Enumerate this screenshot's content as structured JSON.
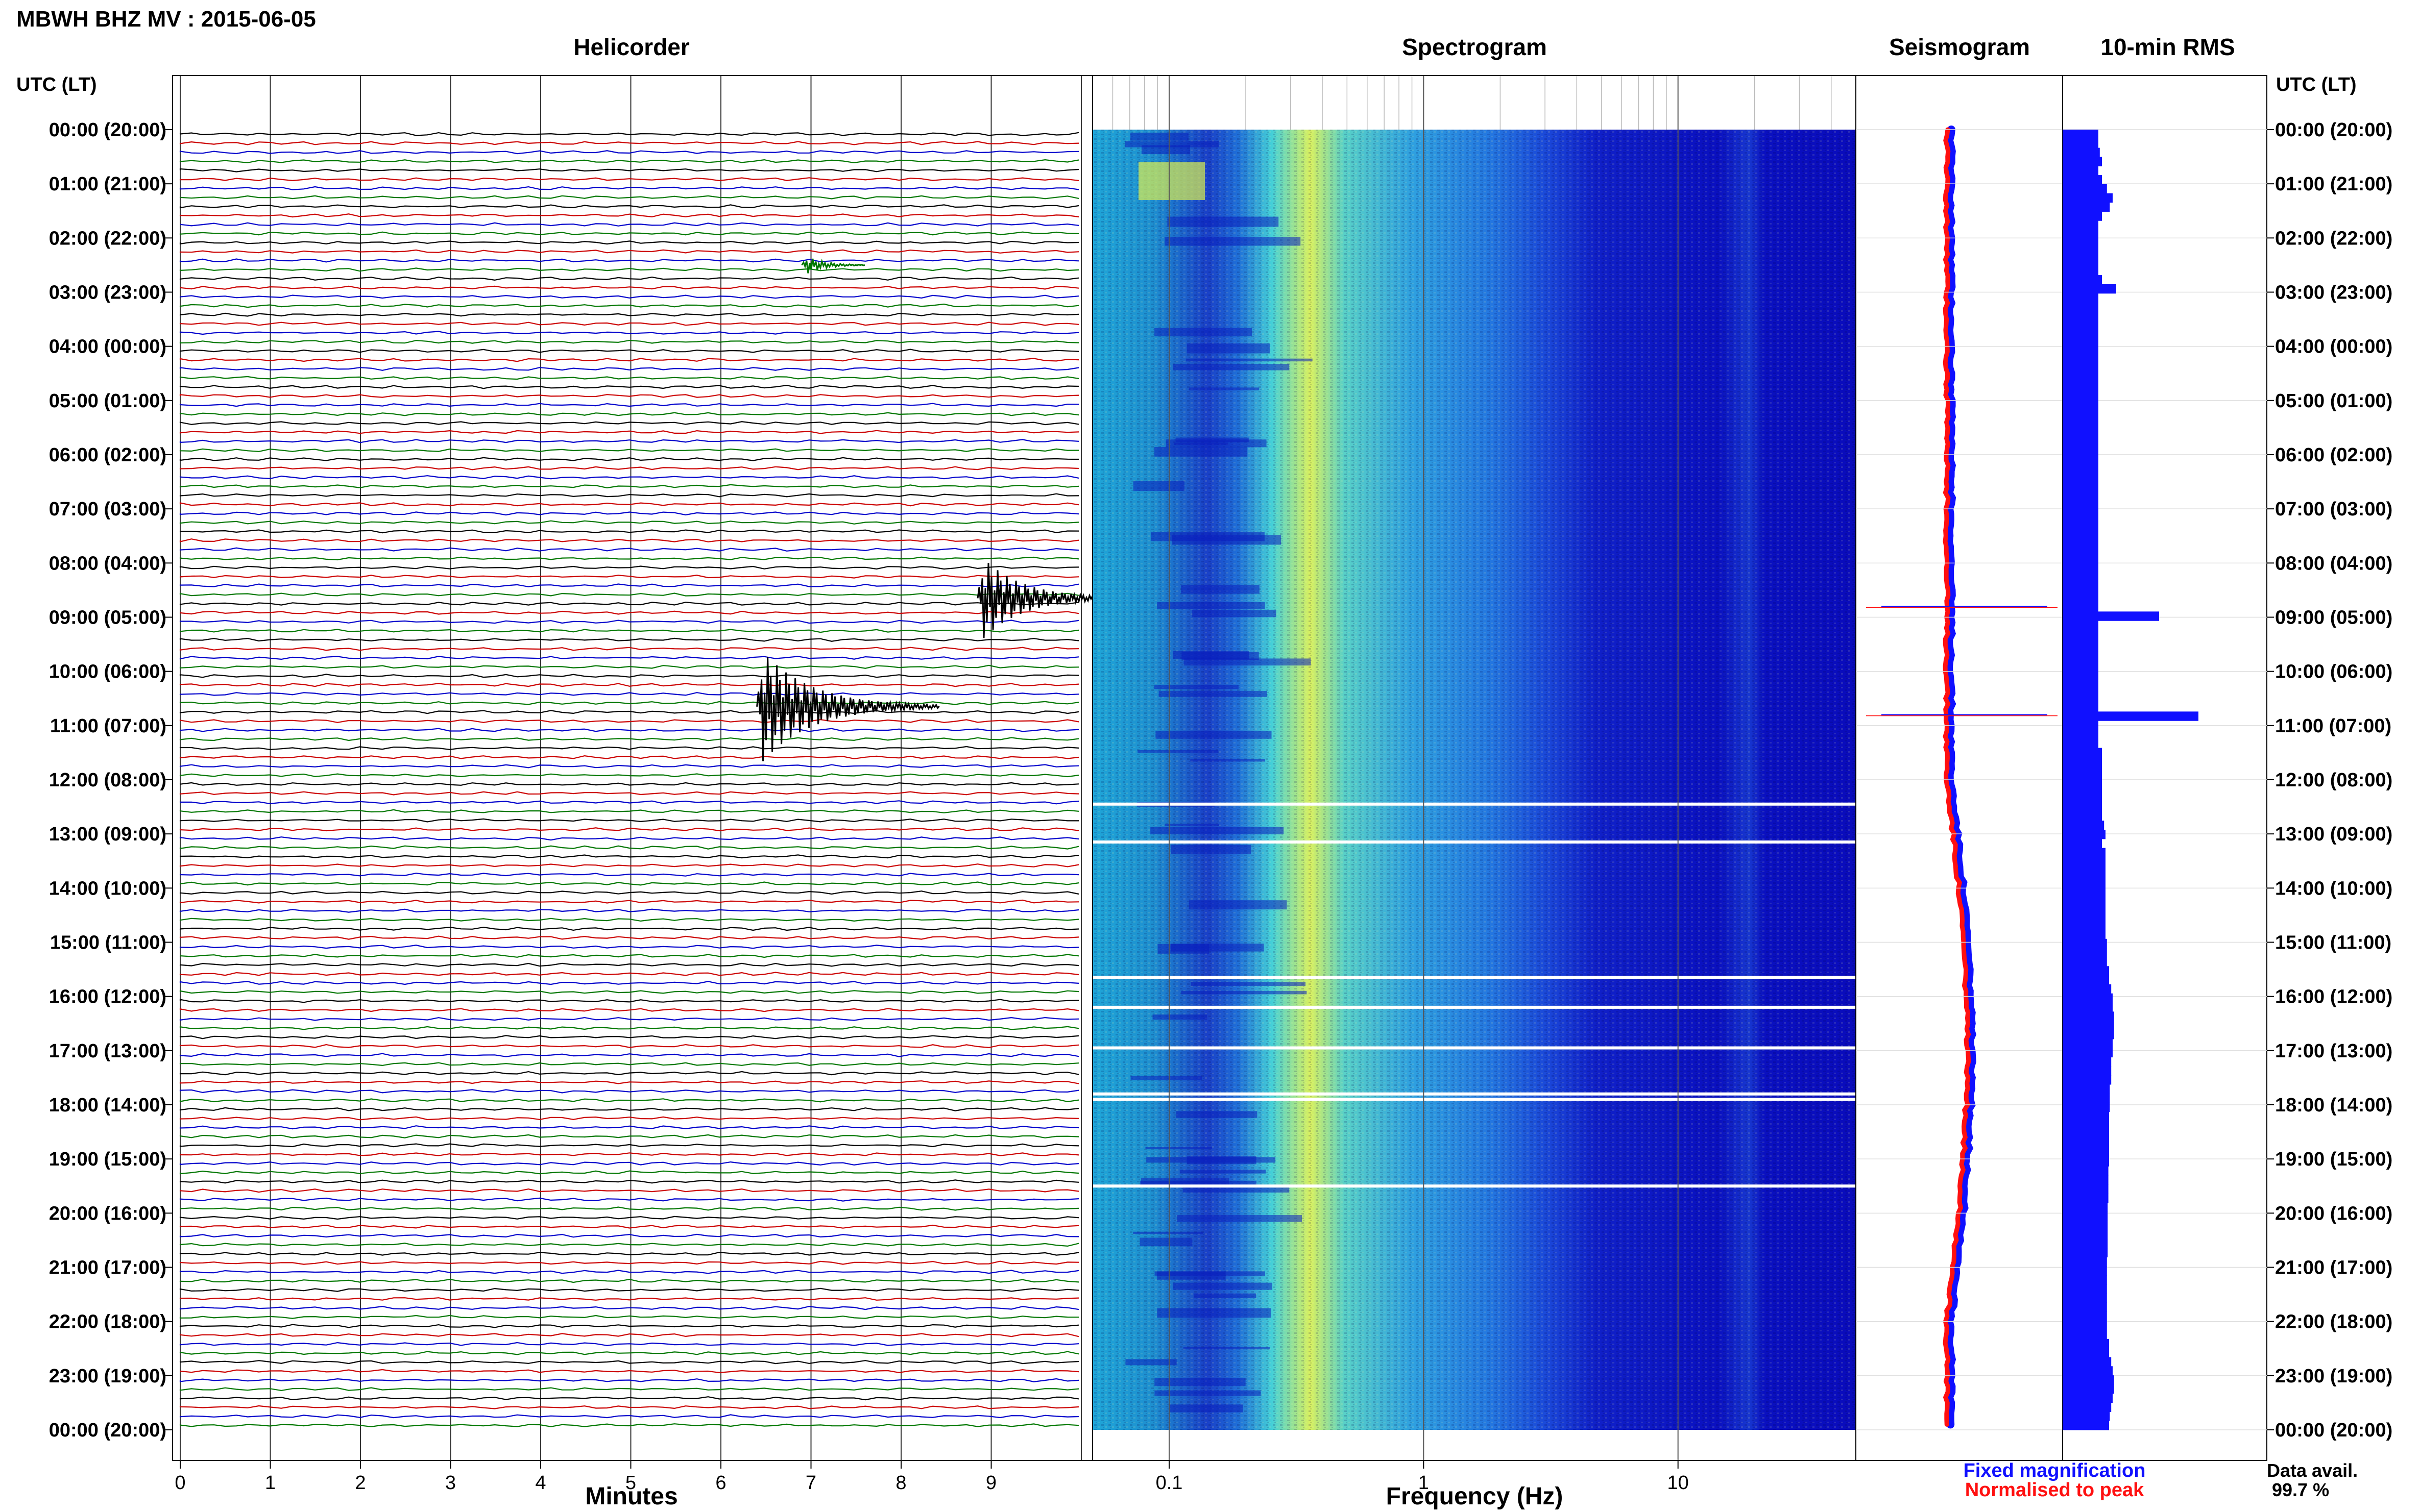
{
  "header": {
    "station_title": "MBWH BHZ MV : 2015-06-05"
  },
  "panels": {
    "helicorder": "Helicorder",
    "spectrogram": "Spectrogram",
    "seismogram": "Seismogram",
    "rms": "10-min RMS"
  },
  "axis_labels": {
    "utc_left": "UTC (LT)",
    "utc_right": "UTC (LT)",
    "minutes": "Minutes",
    "frequency": "Frequency (Hz)"
  },
  "time_ticks": [
    "00:00 (20:00)",
    "01:00 (21:00)",
    "02:00 (22:00)",
    "03:00 (23:00)",
    "04:00 (00:00)",
    "05:00 (01:00)",
    "06:00 (02:00)",
    "07:00 (03:00)",
    "08:00 (04:00)",
    "09:00 (05:00)",
    "10:00 (06:00)",
    "11:00 (07:00)",
    "12:00 (08:00)",
    "13:00 (09:00)",
    "14:00 (10:00)",
    "15:00 (11:00)",
    "16:00 (12:00)",
    "17:00 (13:00)",
    "18:00 (14:00)",
    "19:00 (15:00)",
    "20:00 (16:00)",
    "21:00 (17:00)",
    "22:00 (18:00)",
    "23:00 (19:00)",
    "00:00 (20:00)"
  ],
  "minute_ticks": [
    "0",
    "1",
    "2",
    "3",
    "4",
    "5",
    "6",
    "7",
    "8",
    "9"
  ],
  "freq_ticks": [
    "0.1",
    "1",
    "10"
  ],
  "legend": {
    "fixed": "Fixed magnification",
    "normalised": "Normalised to peak",
    "fixed_color": "#1010ff",
    "normalised_color": "#ff1010"
  },
  "data_avail": {
    "label": "Data avail.",
    "value": "99.7 %"
  },
  "chart_data": {
    "type": "heatmap",
    "helicorder": {
      "trace_colors": [
        "#000000",
        "#cc0000",
        "#0000cc",
        "#007700"
      ],
      "minutes_per_line": 10,
      "events": [
        {
          "hour": 2.5,
          "minute": 6.9,
          "amplitude": 0.3,
          "color": "#007700"
        },
        {
          "hour": 8.65,
          "minute": 8.85,
          "amplitude": 1.2,
          "color": "#000000"
        },
        {
          "hour": 10.65,
          "minute": 6.4,
          "amplitude": 1.6,
          "color": "#000000"
        }
      ]
    },
    "spectrogram": {
      "freq_range_hz": [
        0.05,
        50
      ],
      "scale": "log",
      "gaps_hours": [
        12.45,
        13.15,
        15.65,
        16.2,
        16.95,
        17.8,
        17.9,
        19.5
      ]
    },
    "seismogram": {
      "events_hours": [
        8.8,
        10.8
      ]
    },
    "rms": {
      "interval_minutes": 10,
      "relative_values": [
        0.5,
        0.5,
        0.52,
        0.55,
        0.5,
        0.55,
        0.62,
        0.7,
        0.66,
        0.55,
        0.5,
        0.5,
        0.5,
        0.5,
        0.5,
        0.5,
        0.55,
        0.75,
        0.5,
        0.5,
        0.5,
        0.5,
        0.5,
        0.5,
        0.5,
        0.5,
        0.5,
        0.5,
        0.5,
        0.5,
        0.5,
        0.5,
        0.5,
        0.5,
        0.5,
        0.5,
        0.5,
        0.5,
        0.5,
        0.5,
        0.5,
        0.5,
        0.5,
        0.5,
        0.5,
        0.5,
        0.5,
        0.5,
        0.5,
        0.5,
        0.5,
        0.5,
        0.5,
        1.35,
        0.5,
        0.5,
        0.5,
        0.5,
        0.5,
        0.5,
        0.5,
        0.5,
        0.5,
        0.5,
        1.9,
        0.5,
        0.5,
        0.5,
        0.55,
        0.55,
        0.55,
        0.55,
        0.55,
        0.55,
        0.55,
        0.55,
        0.58,
        0.6,
        0.55,
        0.6,
        0.6,
        0.6,
        0.6,
        0.6,
        0.6,
        0.6,
        0.6,
        0.6,
        0.6,
        0.62,
        0.62,
        0.62,
        0.65,
        0.65,
        0.68,
        0.7,
        0.7,
        0.72,
        0.72,
        0.72,
        0.7,
        0.7,
        0.68,
        0.68,
        0.68,
        0.66,
        0.66,
        0.66,
        0.65,
        0.65,
        0.65,
        0.65,
        0.65,
        0.65,
        0.64,
        0.64,
        0.64,
        0.64,
        0.63,
        0.63,
        0.63,
        0.63,
        0.63,
        0.63,
        0.62,
        0.62,
        0.62,
        0.62,
        0.62,
        0.62,
        0.62,
        0.62,
        0.62,
        0.65,
        0.65,
        0.68,
        0.7,
        0.72,
        0.72,
        0.7,
        0.68,
        0.66,
        0.65
      ]
    }
  }
}
